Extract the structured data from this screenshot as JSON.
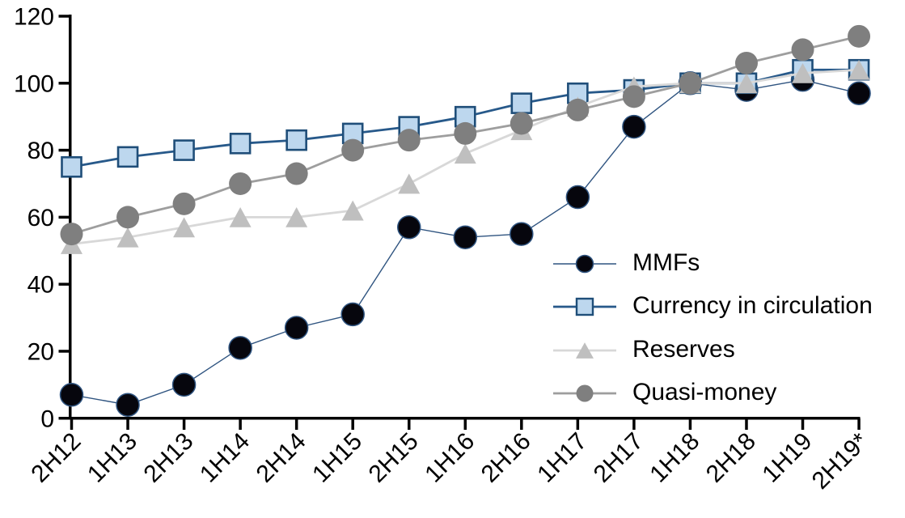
{
  "chart_data": {
    "type": "line",
    "title": "",
    "xlabel": "",
    "ylabel": "",
    "categories": [
      "2H12",
      "1H13",
      "2H13",
      "1H14",
      "2H14",
      "1H15",
      "2H15",
      "1H16",
      "2H16",
      "1H17",
      "2H17",
      "1H18",
      "2H18",
      "1H19",
      "2H19*"
    ],
    "series": [
      {
        "name": "MMFs",
        "marker": "circle",
        "marker_fill": "#06060d",
        "marker_stroke": "#2f5480",
        "line_color": "#2f5480",
        "line_width": 1.4,
        "marker_size": 28,
        "values": [
          7,
          4,
          10,
          21,
          27,
          31,
          57,
          54,
          55,
          66,
          87,
          100,
          98,
          101,
          97
        ]
      },
      {
        "name": "Currency in circulation",
        "marker": "square",
        "marker_fill": "#bdd7ee",
        "marker_stroke": "#1f4e79",
        "line_color": "#27598a",
        "line_width": 2.8,
        "marker_size": 24,
        "values": [
          75,
          78,
          80,
          82,
          83,
          85,
          87,
          90,
          94,
          97,
          98,
          100,
          100,
          104,
          104
        ]
      },
      {
        "name": "Reserves",
        "marker": "triangle",
        "marker_fill": "#bfbfbf",
        "marker_stroke": "none",
        "line_color": "#d8d8d8",
        "line_width": 2.8,
        "marker_size": 27,
        "values": [
          52,
          54,
          57,
          60,
          60,
          62,
          70,
          79,
          86,
          93,
          99,
          100,
          100,
          103,
          104
        ]
      },
      {
        "name": "Quasi-money",
        "marker": "circle",
        "marker_fill": "#7f7f7f",
        "marker_stroke": "none",
        "line_color": "#9e9e9e",
        "line_width": 2.8,
        "marker_size": 28,
        "values": [
          55,
          60,
          64,
          70,
          73,
          80,
          83,
          85,
          88,
          92,
          96,
          100,
          106,
          110,
          114
        ]
      }
    ],
    "y_axis": {
      "min": 0,
      "max": 120,
      "step": 20,
      "tick_labels": [
        "0",
        "20",
        "40",
        "60",
        "80",
        "100",
        "120"
      ]
    },
    "x_axis": {
      "tick_label_rotation_deg": -45
    },
    "legend_position": "inside-right",
    "gridlines": false,
    "axis_color": "#000000",
    "background_color": "#ffffff"
  }
}
